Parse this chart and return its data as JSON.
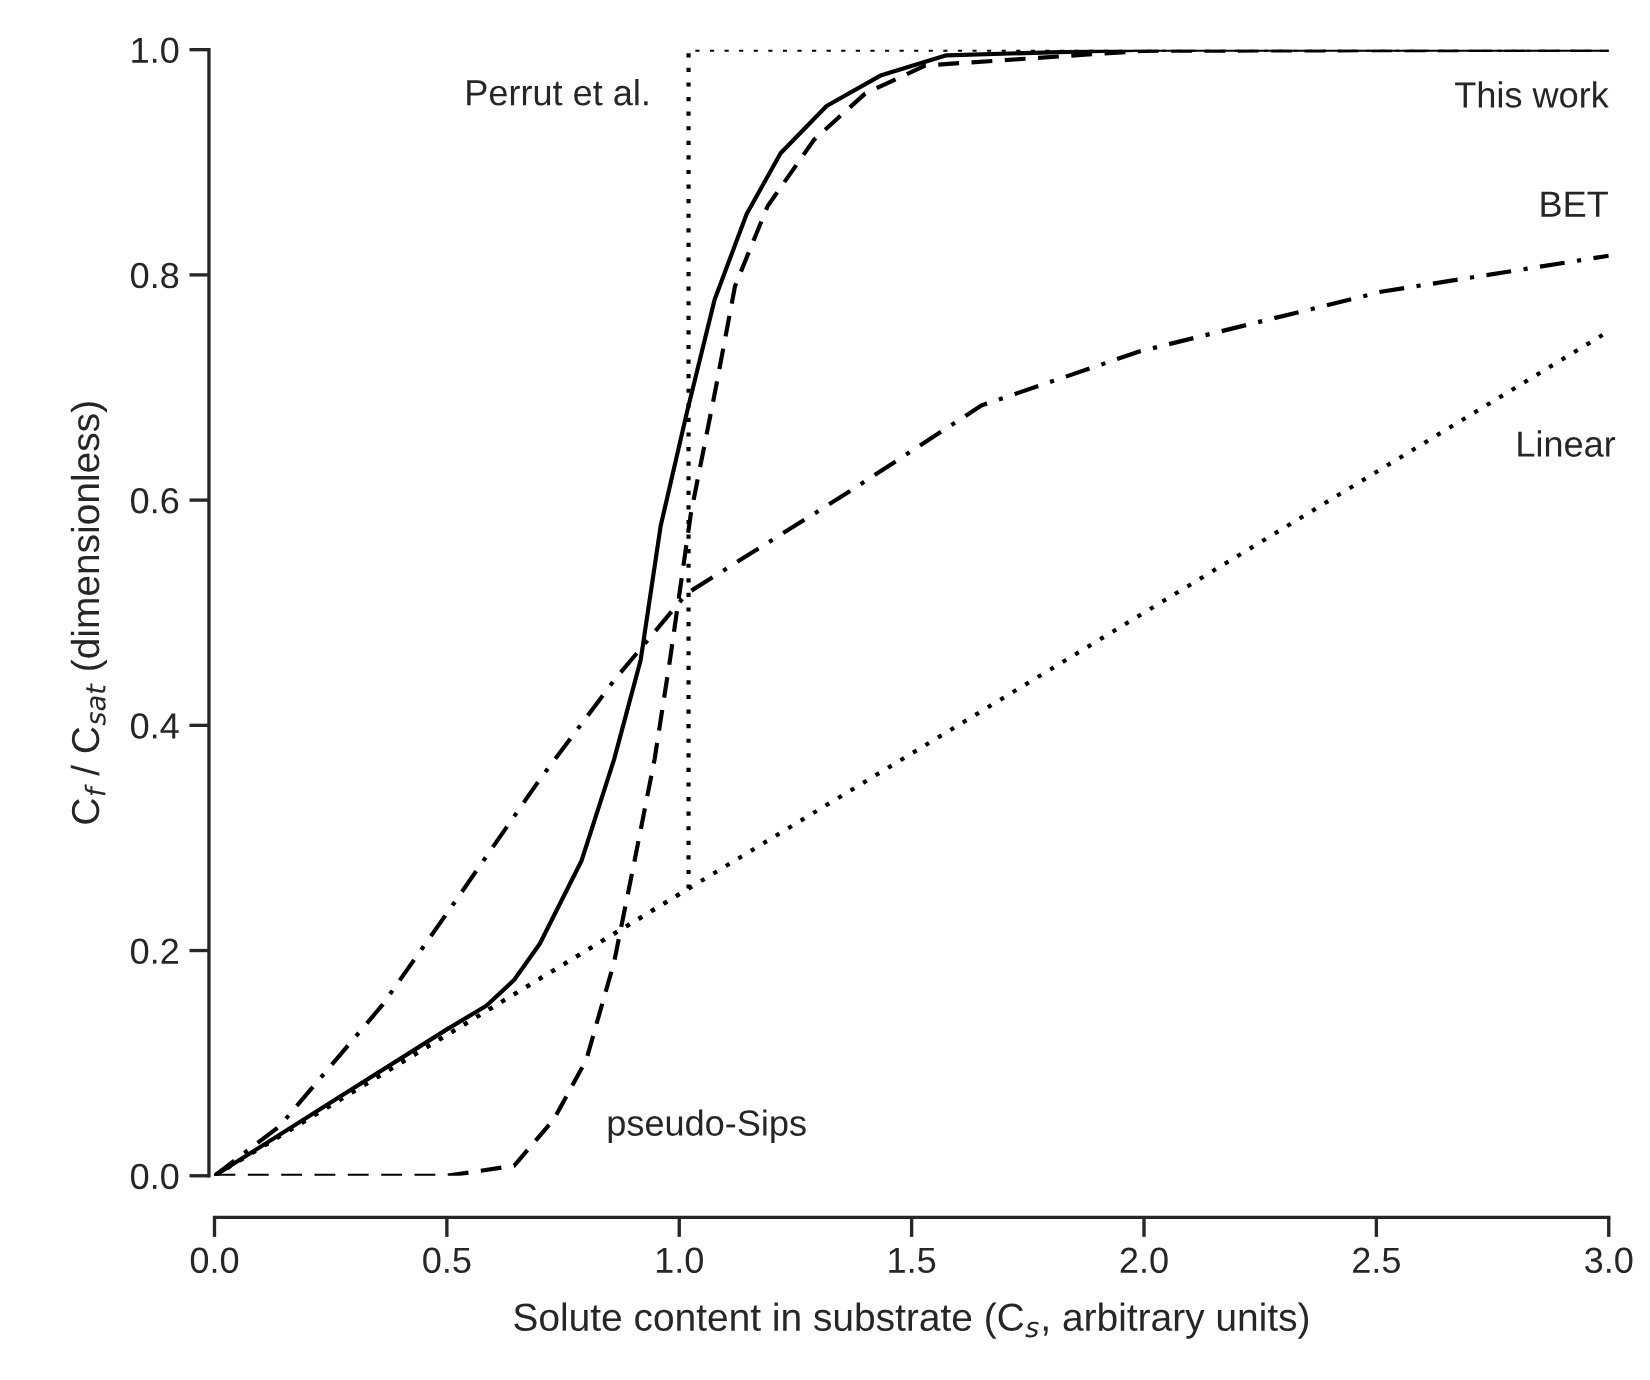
{
  "chart_data": {
    "type": "line",
    "xlabel": "Solute content in substrate (C$_{s}$, arbitrary units)",
    "ylabel": "C$_{f}$ / C$_{sat}$ (dimensionless)",
    "xlim": [
      0,
      3
    ],
    "ylim": [
      0,
      1
    ],
    "xticks": [
      {
        "value": 0,
        "label": "0.0"
      },
      {
        "value": 0.5,
        "label": "0.5"
      },
      {
        "value": 1,
        "label": "1.0"
      },
      {
        "value": 1.5,
        "label": "1.5"
      },
      {
        "value": 2,
        "label": "2.0"
      },
      {
        "value": 2.5,
        "label": "2.5"
      },
      {
        "value": 3,
        "label": "3.0"
      }
    ],
    "yticks": [
      {
        "value": 0,
        "label": "0.0"
      },
      {
        "value": 0.2,
        "label": "0.2"
      },
      {
        "value": 0.4,
        "label": "0.4"
      },
      {
        "value": 0.6,
        "label": "0.6"
      },
      {
        "value": 0.8,
        "label": "0.8"
      },
      {
        "value": 1,
        "label": "1.0"
      }
    ],
    "grid": false,
    "legend": false,
    "marker": "none",
    "series": [
      {
        "name": "This work",
        "color": "#000000",
        "line_style": "solid",
        "x": [
          0,
          0.25,
          0.5,
          0.585,
          0.645,
          0.7,
          0.79,
          0.86,
          0.917,
          0.96,
          1.016,
          1.076,
          1.145,
          1.218,
          1.317,
          1.433,
          1.575,
          2.0,
          3.0
        ],
        "values": [
          0,
          0.065,
          0.13,
          0.151,
          0.174,
          0.206,
          0.28,
          0.37,
          0.458,
          0.577,
          0.677,
          0.778,
          0.854,
          0.908,
          0.95,
          0.977,
          0.995,
          1.0,
          1.0
        ]
      },
      {
        "name": "pseudo-Sips",
        "color": "#000000",
        "line_style": "dashed",
        "x": [
          0,
          0.5,
          0.55,
          0.645,
          0.73,
          0.8,
          0.86,
          0.904,
          0.947,
          0.98,
          1.025,
          1.076,
          1.12,
          1.19,
          1.29,
          1.4,
          1.53,
          2.0,
          3.0
        ],
        "values": [
          0,
          0,
          0.003,
          0.009,
          0.05,
          0.103,
          0.19,
          0.28,
          0.37,
          0.458,
          0.588,
          0.694,
          0.79,
          0.861,
          0.92,
          0.961,
          0.986,
          0.999,
          1.0
        ]
      },
      {
        "name": "BET",
        "color": "#000000",
        "line_style": "dashdot",
        "x": [
          0,
          0.14,
          0.36,
          0.5,
          0.7,
          0.86,
          1.016,
          1.36,
          1.65,
          1.99,
          2.51,
          3.0
        ],
        "values": [
          0,
          0.044,
          0.151,
          0.233,
          0.352,
          0.44,
          0.517,
          0.606,
          0.684,
          0.732,
          0.785,
          0.817
        ]
      },
      {
        "name": "Linear",
        "color": "#000000",
        "line_style": "dotted",
        "x": [
          0,
          3.0
        ],
        "values": [
          0,
          0.75
        ]
      },
      {
        "name": "Perrut et al.",
        "color": "#000000",
        "line_style": "dotted",
        "x": [
          0,
          1.02,
          1.02,
          3.0
        ],
        "values": [
          0,
          0.255,
          1.0,
          1.0
        ]
      }
    ]
  }
}
